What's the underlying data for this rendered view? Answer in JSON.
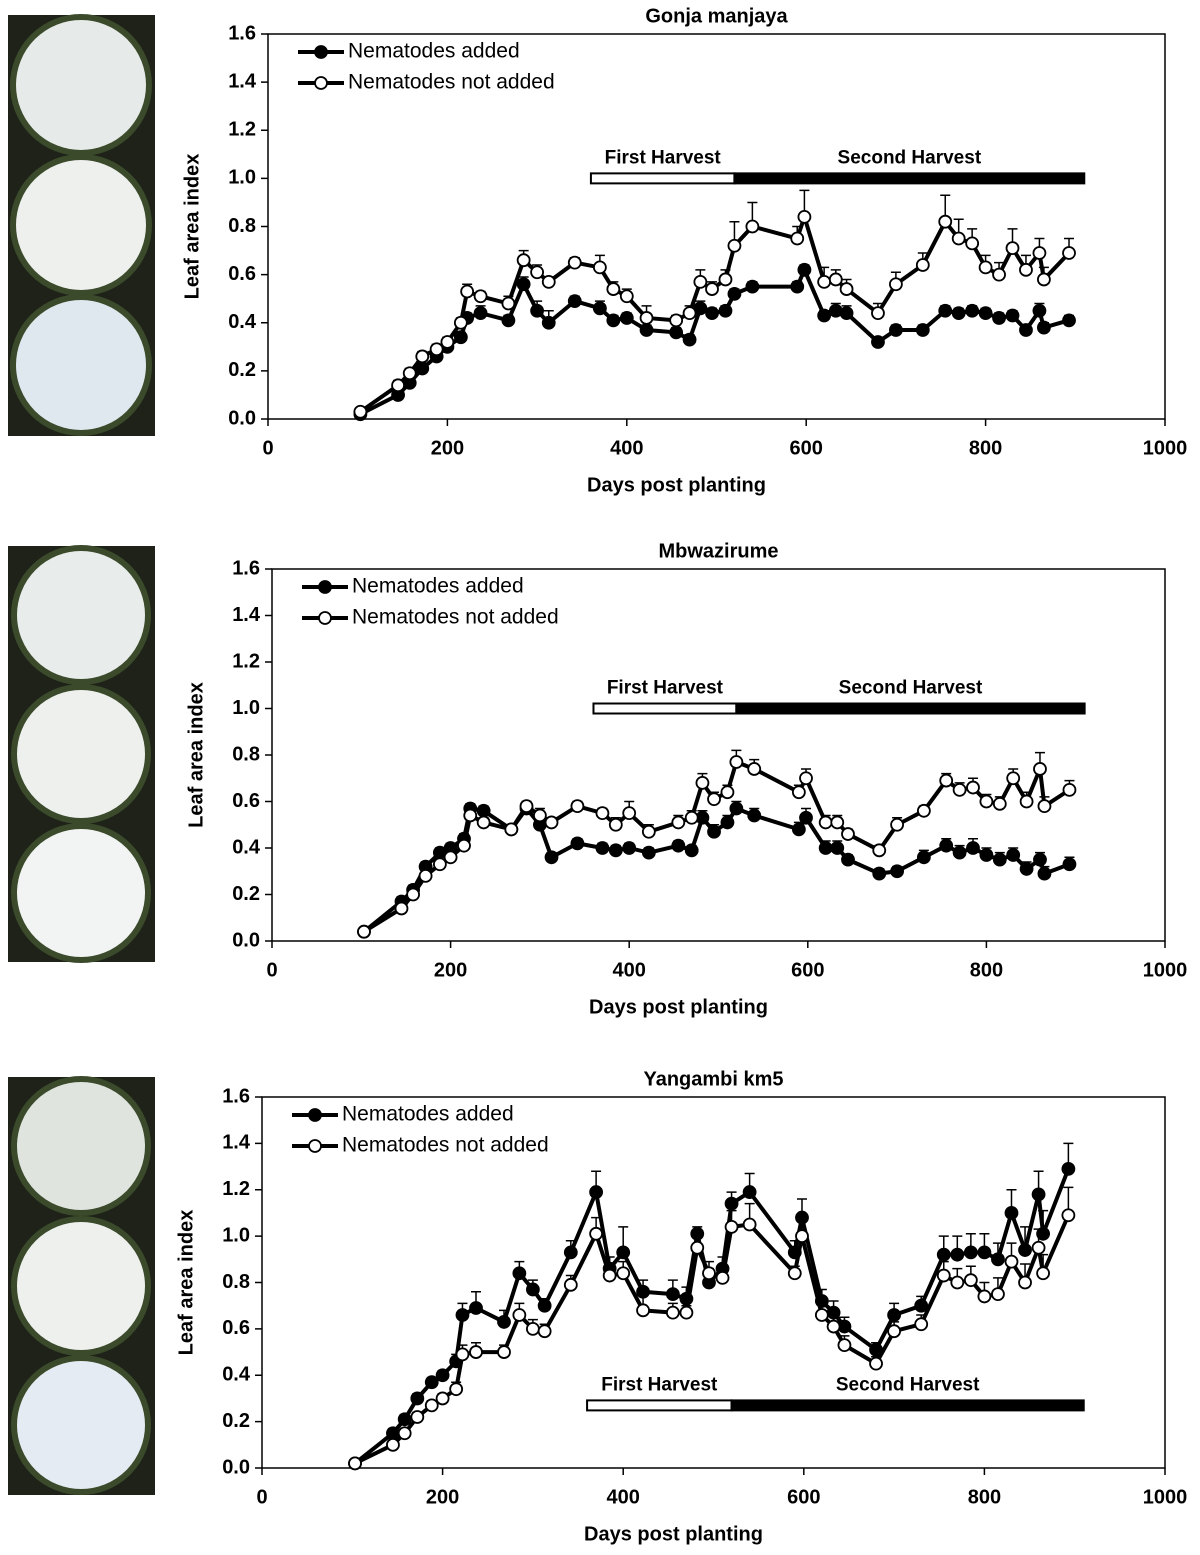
{
  "chart_data": [
    {
      "type": "line",
      "title": "Gonja manjaya",
      "x_label": "Days post planting",
      "y_label": "Leaf area index",
      "legend": "upper left",
      "harvest_position": "upper",
      "harvests": [
        {
          "label": "First Harvest",
          "range": [
            360,
            520
          ],
          "color": "#ffffff"
        },
        {
          "label": "Second Harvest",
          "range": [
            520,
            910
          ],
          "color": "#000000"
        }
      ],
      "xlim": [
        0,
        1000
      ],
      "xticks": [
        0,
        200,
        400,
        600,
        800,
        1000
      ],
      "ylim": [
        0,
        1.6
      ],
      "yticks": [
        {
          "value": 0,
          "label": "0.0"
        },
        {
          "value": 0.2,
          "label": "0.2"
        },
        {
          "value": 0.4,
          "label": "0.4"
        },
        {
          "value": 0.6,
          "label": "0.6"
        },
        {
          "value": 0.8,
          "label": "0.8"
        },
        {
          "value": 1,
          "label": "1.0"
        },
        {
          "value": 1.2,
          "label": "1.2"
        },
        {
          "value": 1.4,
          "label": "1.4"
        },
        {
          "value": 1.6,
          "label": "1.6"
        }
      ],
      "x": [
        103,
        145,
        158,
        172,
        188,
        200,
        215,
        222,
        237,
        268,
        285,
        300,
        313,
        342,
        370,
        385,
        400,
        422,
        455,
        470,
        482,
        495,
        510,
        520,
        540,
        590,
        598,
        620,
        633,
        645,
        680,
        700,
        730,
        755,
        770,
        785,
        800,
        815,
        830,
        845,
        860,
        865,
        893
      ],
      "series": [
        {
          "name": "Nematodes added",
          "color": "#000000",
          "marker": "filled",
          "values": [
            0.02,
            0.1,
            0.15,
            0.21,
            0.26,
            0.3,
            0.34,
            0.42,
            0.44,
            0.41,
            0.56,
            0.45,
            0.4,
            0.49,
            0.46,
            0.41,
            0.42,
            0.37,
            0.36,
            0.33,
            0.46,
            0.44,
            0.45,
            0.52,
            0.55,
            0.55,
            0.62,
            0.43,
            0.45,
            0.44,
            0.32,
            0.37,
            0.37,
            0.45,
            0.44,
            0.45,
            0.44,
            0.42,
            0.43,
            0.37,
            0.45,
            0.38,
            0.41
          ],
          "errors": [
            0.01,
            0.02,
            0.02,
            0.02,
            0.02,
            0.02,
            0.02,
            0.02,
            0.03,
            0.02,
            0.03,
            0.04,
            0.05,
            0.02,
            0.03,
            0.02,
            0.02,
            0.02,
            0.02,
            0.02,
            0.03,
            0.02,
            0.02,
            0.02,
            0.02,
            0.02,
            0.02,
            0.02,
            0.03,
            0.03,
            0.02,
            0.02,
            0.02,
            0.02,
            0.02,
            0.02,
            0.02,
            0.02,
            0.02,
            0.02,
            0.03,
            0.02,
            0.02
          ]
        },
        {
          "name": "Nematodes not added",
          "color": "#000000",
          "marker": "open",
          "values": [
            0.03,
            0.14,
            0.19,
            0.26,
            0.29,
            0.32,
            0.4,
            0.53,
            0.51,
            0.48,
            0.66,
            0.61,
            0.57,
            0.65,
            0.63,
            0.54,
            0.51,
            0.42,
            0.41,
            0.44,
            0.57,
            0.54,
            0.58,
            0.72,
            0.8,
            0.75,
            0.84,
            0.57,
            0.58,
            0.54,
            0.44,
            0.56,
            0.64,
            0.82,
            0.75,
            0.73,
            0.63,
            0.6,
            0.71,
            0.62,
            0.69,
            0.58,
            0.69
          ],
          "errors": [
            0.01,
            0.02,
            0.02,
            0.02,
            0.02,
            0.02,
            0.02,
            0.03,
            0.02,
            0.03,
            0.04,
            0.03,
            0.02,
            0.02,
            0.05,
            0.03,
            0.03,
            0.05,
            0.02,
            0.03,
            0.05,
            0.03,
            0.04,
            0.1,
            0.1,
            0.05,
            0.11,
            0.06,
            0.04,
            0.04,
            0.04,
            0.05,
            0.05,
            0.11,
            0.08,
            0.06,
            0.05,
            0.05,
            0.08,
            0.06,
            0.06,
            0.05,
            0.06
          ]
        }
      ]
    },
    {
      "type": "line",
      "title": "Mbwazirume",
      "x_label": "Days post planting",
      "y_label": "Leaf area index",
      "legend": "upper left",
      "harvest_position": "upper",
      "harvests": [
        {
          "label": "First Harvest",
          "range": [
            360,
            520
          ],
          "color": "#ffffff"
        },
        {
          "label": "Second Harvest",
          "range": [
            520,
            910
          ],
          "color": "#000000"
        }
      ],
      "xlim": [
        0,
        1000
      ],
      "xticks": [
        0,
        200,
        400,
        600,
        800,
        1000
      ],
      "ylim": [
        0,
        1.6
      ],
      "yticks": [
        {
          "value": 0,
          "label": "0.0"
        },
        {
          "value": 0.2,
          "label": "0.2"
        },
        {
          "value": 0.4,
          "label": "0.4"
        },
        {
          "value": 0.6,
          "label": "0.6"
        },
        {
          "value": 0.8,
          "label": "0.8"
        },
        {
          "value": 1,
          "label": "1.0"
        },
        {
          "value": 1.2,
          "label": "1.2"
        },
        {
          "value": 1.4,
          "label": "1.4"
        },
        {
          "value": 1.6,
          "label": "1.6"
        }
      ],
      "x": [
        103,
        145,
        158,
        172,
        188,
        200,
        215,
        222,
        237,
        268,
        285,
        300,
        313,
        342,
        370,
        385,
        400,
        422,
        455,
        470,
        482,
        495,
        510,
        520,
        540,
        590,
        598,
        620,
        633,
        645,
        680,
        700,
        730,
        755,
        770,
        785,
        800,
        815,
        830,
        845,
        860,
        865,
        893
      ],
      "series": [
        {
          "name": "Nematodes added",
          "color": "#000000",
          "marker": "filled",
          "values": [
            0.04,
            0.17,
            0.22,
            0.32,
            0.38,
            0.4,
            0.44,
            0.57,
            0.56,
            0.48,
            0.57,
            0.5,
            0.36,
            0.42,
            0.4,
            0.39,
            0.4,
            0.38,
            0.41,
            0.39,
            0.53,
            0.47,
            0.51,
            0.57,
            0.54,
            0.48,
            0.53,
            0.4,
            0.4,
            0.35,
            0.29,
            0.3,
            0.36,
            0.41,
            0.38,
            0.4,
            0.37,
            0.35,
            0.37,
            0.31,
            0.35,
            0.29,
            0.33
          ],
          "errors": [
            0.01,
            0.02,
            0.02,
            0.02,
            0.02,
            0.02,
            0.02,
            0.02,
            0.02,
            0.02,
            0.02,
            0.02,
            0.02,
            0.02,
            0.02,
            0.02,
            0.02,
            0.02,
            0.02,
            0.02,
            0.03,
            0.03,
            0.03,
            0.03,
            0.03,
            0.03,
            0.04,
            0.03,
            0.03,
            0.02,
            0.02,
            0.02,
            0.03,
            0.03,
            0.03,
            0.04,
            0.03,
            0.03,
            0.03,
            0.03,
            0.03,
            0.03,
            0.03
          ]
        },
        {
          "name": "Nematodes not added",
          "color": "#000000",
          "marker": "open",
          "values": [
            0.04,
            0.14,
            0.2,
            0.28,
            0.33,
            0.36,
            0.41,
            0.54,
            0.51,
            0.48,
            0.58,
            0.54,
            0.51,
            0.58,
            0.55,
            0.5,
            0.55,
            0.47,
            0.51,
            0.53,
            0.68,
            0.61,
            0.64,
            0.77,
            0.74,
            0.64,
            0.7,
            0.51,
            0.51,
            0.46,
            0.39,
            0.5,
            0.56,
            0.69,
            0.65,
            0.66,
            0.6,
            0.59,
            0.7,
            0.6,
            0.74,
            0.58,
            0.65
          ],
          "errors": [
            0.01,
            0.02,
            0.02,
            0.02,
            0.02,
            0.02,
            0.02,
            0.02,
            0.02,
            0.02,
            0.02,
            0.03,
            0.02,
            0.02,
            0.02,
            0.03,
            0.05,
            0.03,
            0.03,
            0.03,
            0.04,
            0.03,
            0.03,
            0.05,
            0.04,
            0.03,
            0.04,
            0.03,
            0.03,
            0.02,
            0.02,
            0.03,
            0.02,
            0.03,
            0.03,
            0.04,
            0.03,
            0.03,
            0.04,
            0.04,
            0.07,
            0.04,
            0.04
          ]
        }
      ]
    },
    {
      "type": "line",
      "title": "Yangambi km5",
      "x_label": "Days post planting",
      "y_label": "Leaf area index",
      "legend": "upper left",
      "harvest_position": "lower",
      "harvests": [
        {
          "label": "First Harvest",
          "range": [
            360,
            520
          ],
          "color": "#ffffff"
        },
        {
          "label": "Second Harvest",
          "range": [
            520,
            910
          ],
          "color": "#000000"
        }
      ],
      "xlim": [
        0,
        1000
      ],
      "xticks": [
        0,
        200,
        400,
        600,
        800,
        1000
      ],
      "ylim": [
        0,
        1.6
      ],
      "yticks": [
        {
          "value": 0,
          "label": "0.0"
        },
        {
          "value": 0.2,
          "label": "0.2"
        },
        {
          "value": 0.4,
          "label": "0.4"
        },
        {
          "value": 0.6,
          "label": "0.6"
        },
        {
          "value": 0.8,
          "label": "0.8"
        },
        {
          "value": 1,
          "label": "1.0"
        },
        {
          "value": 1.2,
          "label": "1.2"
        },
        {
          "value": 1.4,
          "label": "1.4"
        },
        {
          "value": 1.6,
          "label": "1.6"
        }
      ],
      "x": [
        103,
        145,
        158,
        172,
        188,
        200,
        215,
        222,
        237,
        268,
        285,
        300,
        313,
        342,
        370,
        385,
        400,
        422,
        455,
        470,
        482,
        495,
        510,
        520,
        540,
        590,
        598,
        620,
        633,
        645,
        680,
        700,
        730,
        755,
        770,
        785,
        800,
        815,
        830,
        845,
        860,
        865,
        893
      ],
      "series": [
        {
          "name": "Nematodes added",
          "color": "#000000",
          "marker": "filled",
          "values": [
            0.02,
            0.15,
            0.21,
            0.3,
            0.37,
            0.4,
            0.46,
            0.66,
            0.69,
            0.63,
            0.84,
            0.77,
            0.7,
            0.93,
            1.19,
            0.86,
            0.93,
            0.76,
            0.75,
            0.73,
            1.01,
            0.8,
            0.86,
            1.14,
            1.19,
            0.93,
            1.08,
            0.72,
            0.67,
            0.61,
            0.51,
            0.66,
            0.7,
            0.92,
            0.92,
            0.93,
            0.93,
            0.9,
            1.1,
            0.94,
            1.18,
            1.01,
            1.29
          ],
          "errors": [
            0.01,
            0.02,
            0.02,
            0.02,
            0.02,
            0.02,
            0.03,
            0.05,
            0.07,
            0.05,
            0.05,
            0.04,
            0.03,
            0.05,
            0.09,
            0.05,
            0.11,
            0.05,
            0.06,
            0.05,
            0.03,
            0.06,
            0.05,
            0.05,
            0.08,
            0.05,
            0.08,
            0.05,
            0.05,
            0.04,
            0.03,
            0.05,
            0.04,
            0.08,
            0.08,
            0.08,
            0.08,
            0.07,
            0.1,
            0.1,
            0.1,
            0.1,
            0.11
          ]
        },
        {
          "name": "Nematodes not added",
          "color": "#000000",
          "marker": "open",
          "values": [
            0.02,
            0.1,
            0.15,
            0.22,
            0.27,
            0.3,
            0.34,
            0.49,
            0.5,
            0.5,
            0.66,
            0.6,
            0.59,
            0.79,
            1.01,
            0.83,
            0.84,
            0.68,
            0.67,
            0.67,
            0.95,
            0.84,
            0.82,
            1.04,
            1.05,
            0.84,
            1.0,
            0.66,
            0.61,
            0.53,
            0.45,
            0.59,
            0.62,
            0.83,
            0.8,
            0.81,
            0.74,
            0.75,
            0.89,
            0.8,
            0.95,
            0.84,
            1.09
          ],
          "errors": [
            0.01,
            0.02,
            0.02,
            0.02,
            0.02,
            0.02,
            0.03,
            0.04,
            0.04,
            0.03,
            0.05,
            0.04,
            0.03,
            0.04,
            0.07,
            0.05,
            0.05,
            0.08,
            0.04,
            0.03,
            0.06,
            0.05,
            0.05,
            0.07,
            0.09,
            0.03,
            0.08,
            0.05,
            0.05,
            0.04,
            0.03,
            0.04,
            0.04,
            0.06,
            0.06,
            0.06,
            0.06,
            0.07,
            0.08,
            0.08,
            0.08,
            0.08,
            0.12
          ]
        }
      ]
    }
  ]
}
